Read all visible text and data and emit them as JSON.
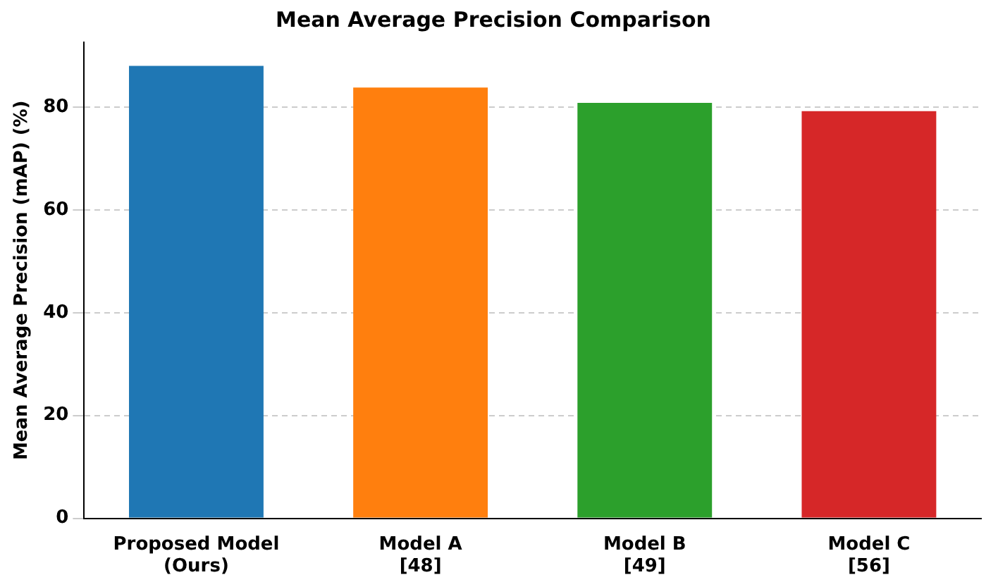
{
  "chart_data": {
    "type": "bar",
    "title": "Mean Average Precision Comparison",
    "ylabel": "Mean Average Precision (mAP) (%)",
    "categories": [
      "Proposed Model\n(Ours)",
      "Model A\n[48]",
      "Model B\n[49]",
      "Model C\n[56]"
    ],
    "values": [
      88.0,
      83.8,
      80.8,
      79.2
    ],
    "colors": [
      "#1f77b4",
      "#ff7f0e",
      "#2ca02c",
      "#d62728"
    ],
    "ylim": [
      0,
      92.6
    ],
    "yticks": [
      0,
      20,
      40,
      60,
      80
    ],
    "grid": "y"
  }
}
